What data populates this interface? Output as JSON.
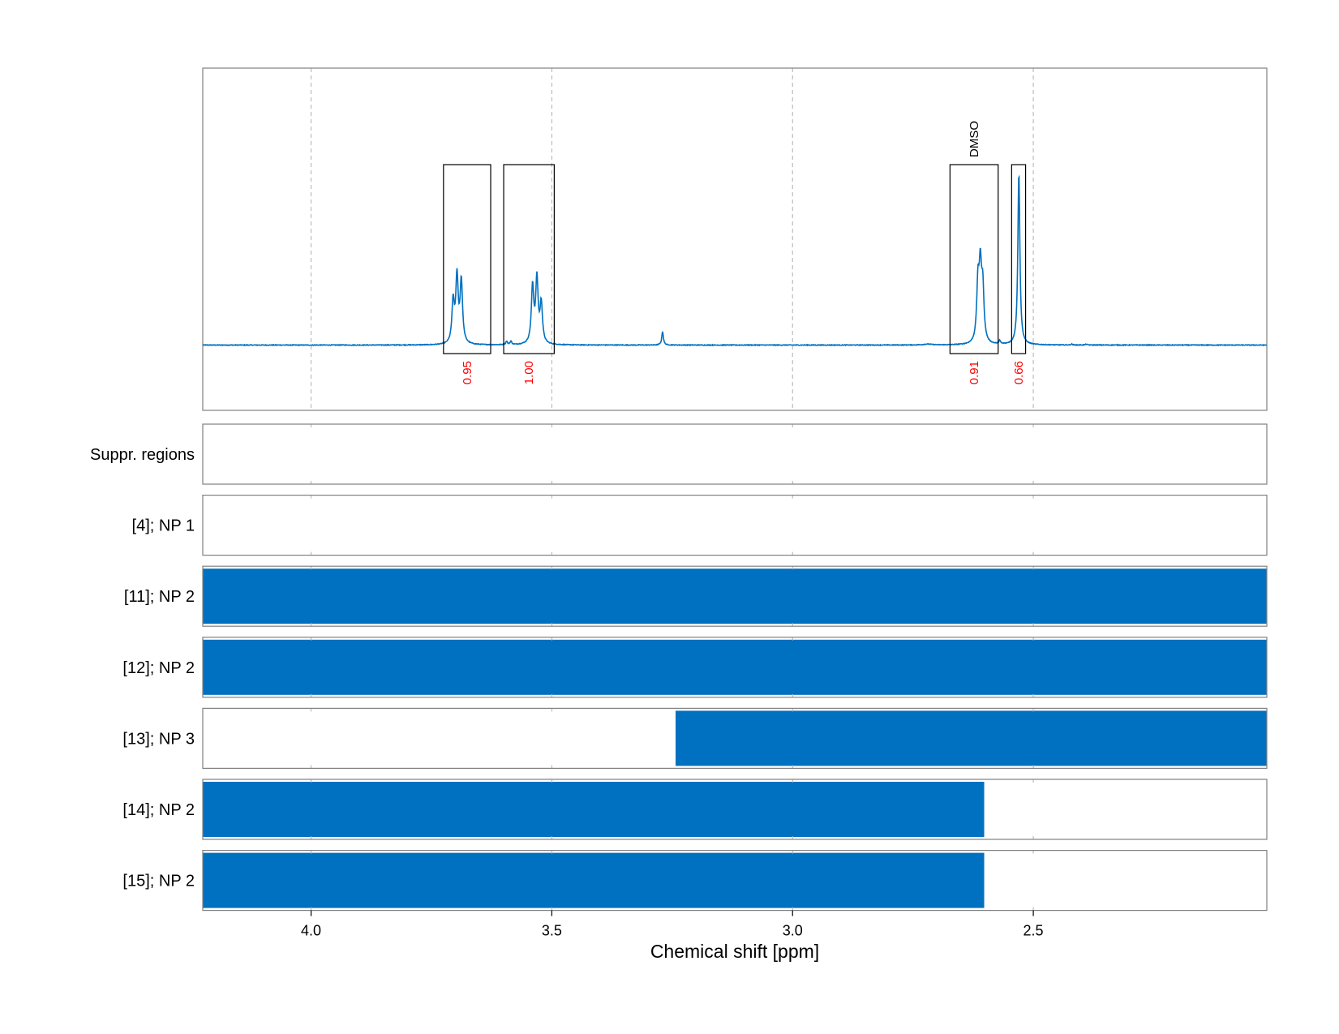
{
  "chart_data": {
    "type": "line",
    "xlabel": "Chemical shift [ppm]",
    "x_axis_reversed": true,
    "xlim": [
      4.225,
      2.015
    ],
    "xticks": [
      {
        "value": 4.0,
        "label": "4.0"
      },
      {
        "value": 3.5,
        "label": "3.5"
      },
      {
        "value": 3.0,
        "label": "3.0"
      },
      {
        "value": 2.5,
        "label": "2.5"
      }
    ],
    "gridlines": "vertical-dashed",
    "spectrum": {
      "baseline": 0.0,
      "peaks": [
        {
          "center": 3.705,
          "height": 0.24,
          "width": 0.003
        },
        {
          "center": 3.697,
          "height": 0.38,
          "width": 0.003
        },
        {
          "center": 3.688,
          "height": 0.36,
          "width": 0.003
        },
        {
          "center": 3.594,
          "height": 0.02,
          "width": 0.002
        },
        {
          "center": 3.585,
          "height": 0.02,
          "width": 0.002
        },
        {
          "center": 3.54,
          "height": 0.33,
          "width": 0.003
        },
        {
          "center": 3.531,
          "height": 0.37,
          "width": 0.003
        },
        {
          "center": 3.522,
          "height": 0.23,
          "width": 0.003
        },
        {
          "center": 3.27,
          "height": 0.08,
          "width": 0.002
        },
        {
          "center": 2.72,
          "height": 0.005,
          "width": 0.01
        },
        {
          "center": 2.615,
          "height": 0.33,
          "width": 0.003
        },
        {
          "center": 2.61,
          "height": 0.4,
          "width": 0.003
        },
        {
          "center": 2.605,
          "height": 0.3,
          "width": 0.003
        },
        {
          "center": 2.57,
          "height": 0.02,
          "width": 0.002
        },
        {
          "center": 2.53,
          "height": 1.0,
          "width": 0.0025
        },
        {
          "center": 2.42,
          "height": 0.005,
          "width": 0.002
        },
        {
          "center": 2.39,
          "height": 0.005,
          "width": 0.002
        }
      ]
    },
    "integrals": [
      {
        "from": 3.725,
        "to": 3.627,
        "value_label": "0.95"
      },
      {
        "from": 3.6,
        "to": 3.495,
        "value_label": "1.00"
      },
      {
        "from": 2.673,
        "to": 2.573,
        "value_label": "0.91",
        "annotation": "DMSO"
      },
      {
        "from": 2.545,
        "to": 2.516,
        "value_label": "0.66"
      }
    ],
    "tracks": [
      {
        "label": "Suppr. regions",
        "bars": []
      },
      {
        "label": "[4]; NP 1",
        "bars": []
      },
      {
        "label": "[11]; NP 2",
        "bars": [
          {
            "from": 4.225,
            "to": 2.015
          }
        ]
      },
      {
        "label": "[12]; NP 2",
        "bars": [
          {
            "from": 4.225,
            "to": 2.015
          }
        ]
      },
      {
        "label": "[13]; NP 3",
        "bars": [
          {
            "from": 3.243,
            "to": 2.015
          }
        ]
      },
      {
        "label": "[14]; NP 2",
        "bars": [
          {
            "from": 4.225,
            "to": 2.602
          }
        ]
      },
      {
        "label": "[15]; NP 2",
        "bars": [
          {
            "from": 4.225,
            "to": 2.602
          }
        ]
      }
    ],
    "colors": {
      "spectrum": "#0070C0",
      "bars": "#0070C0",
      "integral_labels": "#FF0000",
      "frame": "#808080",
      "grid": "#b0b0b0"
    }
  }
}
